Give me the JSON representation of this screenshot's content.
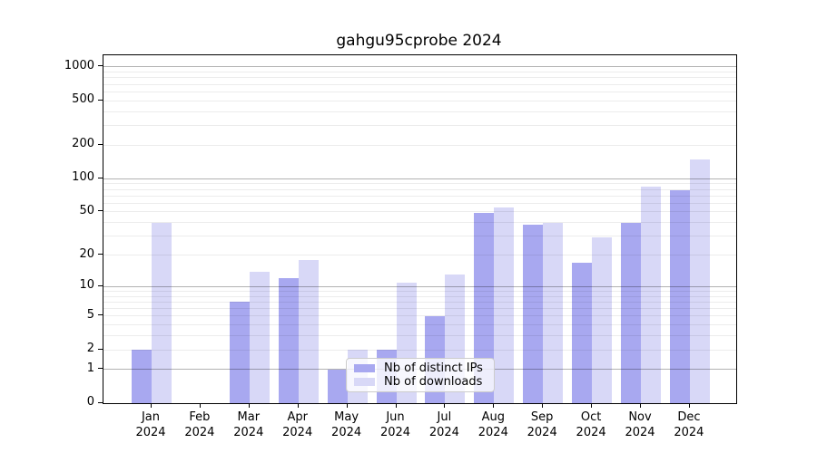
{
  "figure": {
    "background": "#ffffff"
  },
  "chart_data": {
    "type": "bar",
    "title": "gahgu95cprobe 2024",
    "x_year": "2024",
    "categories": [
      "Jan",
      "Feb",
      "Mar",
      "Apr",
      "May",
      "Jun",
      "Jul",
      "Aug",
      "Sep",
      "Oct",
      "Nov",
      "Dec"
    ],
    "series": [
      {
        "key": "distinct-ips",
        "name": "Nb of distinct IPs",
        "color": "#a8a8f0",
        "values": [
          2,
          0,
          7,
          12,
          1,
          2,
          5,
          49,
          38,
          17,
          40,
          78
        ]
      },
      {
        "key": "downloads",
        "name": "Nb of downloads",
        "color": "#d8d8f7",
        "values": [
          40,
          0,
          14,
          18,
          2,
          11,
          13,
          55,
          40,
          29,
          85,
          150
        ]
      }
    ],
    "yscale": "log1p",
    "ylim": [
      0,
      1000
    ],
    "yticks": [
      0,
      1,
      2,
      5,
      10,
      20,
      50,
      100,
      200,
      500,
      1000
    ],
    "ytick_labels": [
      "0",
      "1",
      "2",
      "5",
      "10",
      "20",
      "50",
      "100",
      "200",
      "500",
      "1000"
    ],
    "grid": "both",
    "grid_major_at": [
      1,
      10,
      100,
      1000
    ],
    "legend_position": "inside-lower-center"
  }
}
